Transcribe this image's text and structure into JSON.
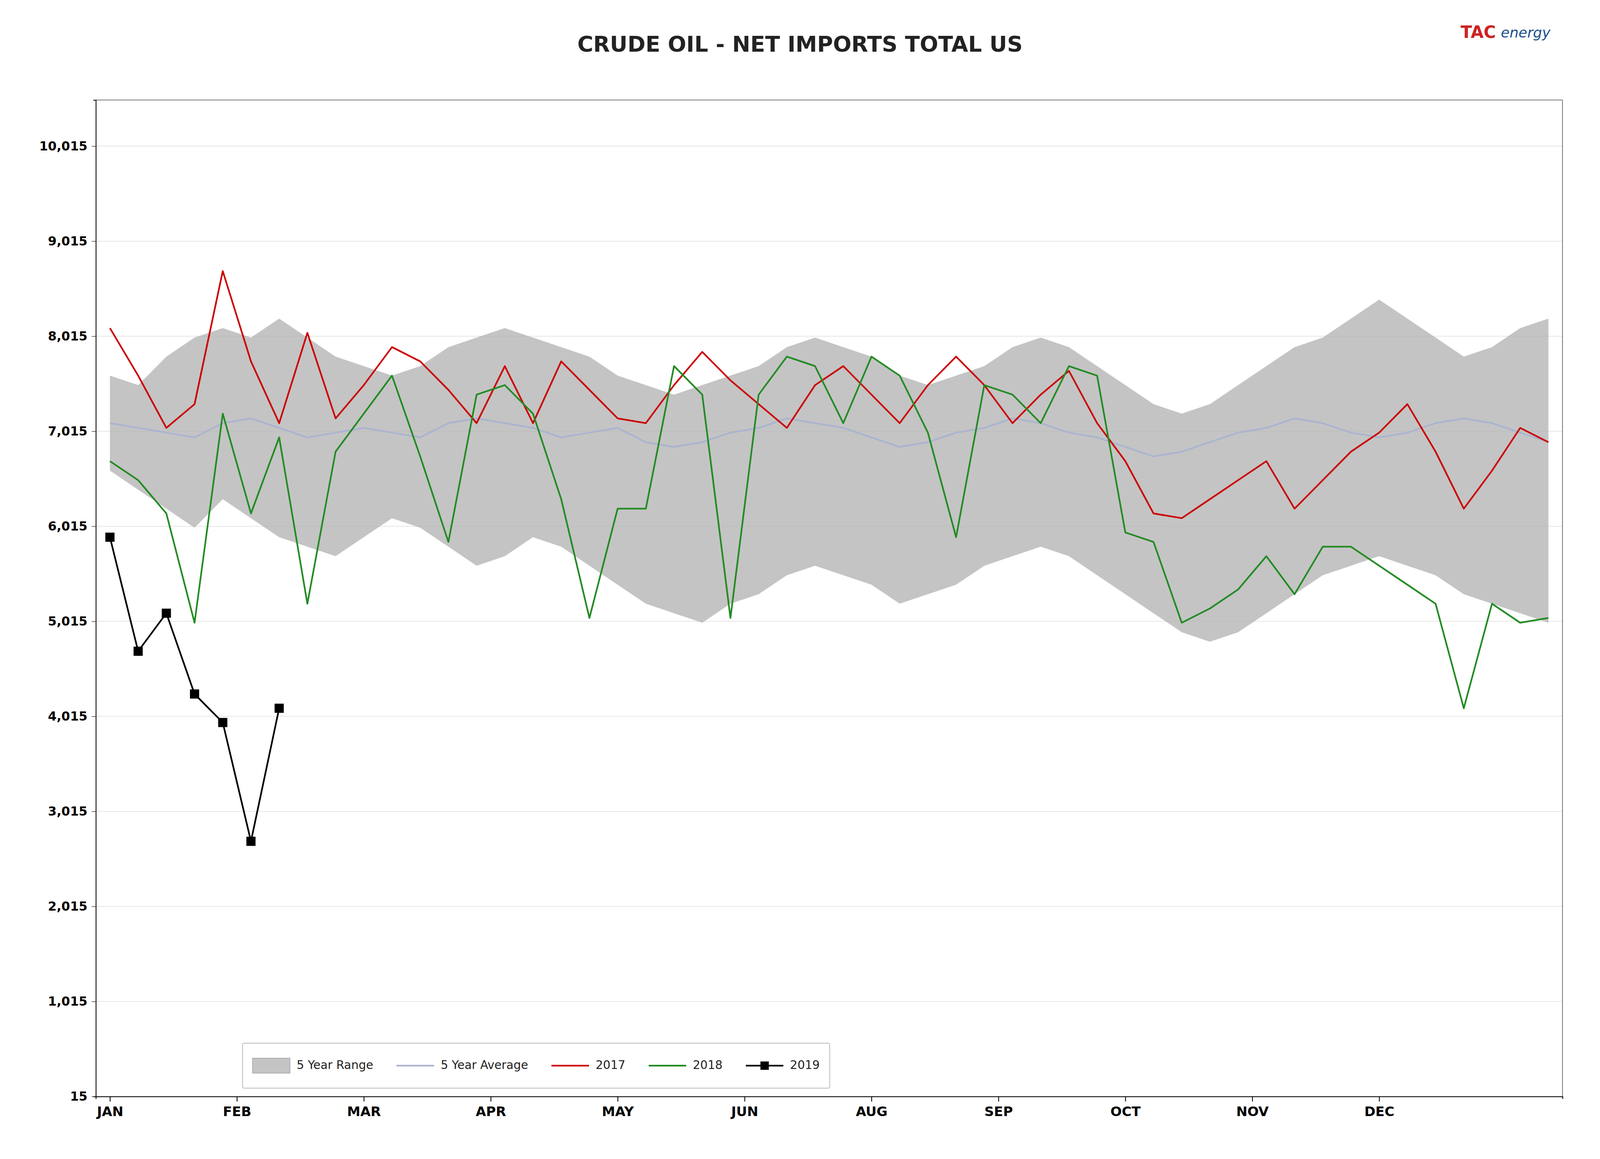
{
  "chart_data": {
    "type": "line",
    "title": "CRUDE OIL - NET IMPORTS TOTAL US",
    "annotations": [
      {
        "text": "TAC",
        "color": "#cc2222"
      },
      {
        "text": "energy",
        "color": "#1a4f8a"
      }
    ],
    "x": [
      0,
      1,
      2,
      3,
      4,
      5,
      6,
      7,
      8,
      9,
      10,
      11,
      12,
      13,
      14,
      15,
      16,
      17,
      18,
      19,
      20,
      21,
      22,
      23,
      24,
      25,
      26,
      27,
      28,
      29,
      30,
      31,
      32,
      33,
      34,
      35,
      36,
      37,
      38,
      39,
      40,
      41,
      42,
      43,
      44,
      45,
      46,
      47,
      48,
      49,
      50,
      51
    ],
    "xlim": [
      -0.5,
      51.5
    ],
    "xticks": [
      {
        "value": 0,
        "label": "JAN"
      },
      {
        "value": 4.5,
        "label": "FEB"
      },
      {
        "value": 9,
        "label": "MAR"
      },
      {
        "value": 13.5,
        "label": "APR"
      },
      {
        "value": 18,
        "label": "MAY"
      },
      {
        "value": 22.5,
        "label": "JUN"
      },
      {
        "value": 27,
        "label": "AUG"
      },
      {
        "value": 31.5,
        "label": "SEP"
      },
      {
        "value": 36,
        "label": "OCT"
      },
      {
        "value": 40.5,
        "label": "NOV"
      },
      {
        "value": 45,
        "label": "DEC"
      }
    ],
    "ylim": [
      15,
      10500
    ],
    "yticks": [
      15,
      {
        "value": 1015,
        "label": "1,015"
      },
      {
        "value": 2015,
        "label": "2,015"
      },
      {
        "value": 3015,
        "label": "3,015"
      },
      {
        "value": 4015,
        "label": "4,015"
      },
      {
        "value": 5015,
        "label": "5,015"
      },
      {
        "value": 6015,
        "label": "6,015"
      },
      {
        "value": 7015,
        "label": "7,015"
      },
      {
        "value": 8015,
        "label": "8,015"
      },
      {
        "value": 9015,
        "label": "9,015"
      },
      {
        "value": 10015,
        "label": "10,015"
      }
    ],
    "grid": true,
    "legend": "lower left",
    "series": [
      {
        "name": "5 Year Range",
        "type": "area",
        "color": "#b0b0b0",
        "low": [
          6600,
          6400,
          6200,
          6000,
          6300,
          6100,
          5900,
          5800,
          5700,
          5900,
          6100,
          6000,
          5800,
          5600,
          5700,
          5900,
          5800,
          5600,
          5400,
          5200,
          5100,
          5000,
          5200,
          5300,
          5500,
          5600,
          5500,
          5400,
          5200,
          5300,
          5400,
          5600,
          5700,
          5800,
          5700,
          5500,
          5300,
          5100,
          4900,
          4800,
          4900,
          5100,
          5300,
          5500,
          5600,
          5700,
          5600,
          5500,
          5300,
          5200,
          5100,
          5000
        ],
        "high": [
          7600,
          7500,
          7800,
          8000,
          8100,
          8000,
          8200,
          8000,
          7800,
          7700,
          7600,
          7700,
          7900,
          8000,
          8100,
          8000,
          7900,
          7800,
          7600,
          7500,
          7400,
          7500,
          7600,
          7700,
          7900,
          8000,
          7900,
          7800,
          7600,
          7500,
          7600,
          7700,
          7900,
          8000,
          7900,
          7700,
          7500,
          7300,
          7200,
          7300,
          7500,
          7700,
          7900,
          8000,
          8200,
          8400,
          8200,
          8000,
          7800,
          7900,
          8100,
          8200
        ]
      },
      {
        "name": "5 Year Average",
        "type": "line",
        "color": "#aab4d0",
        "values": [
          7100,
          7050,
          7000,
          6950,
          7100,
          7150,
          7050,
          6950,
          7000,
          7050,
          7000,
          6950,
          7100,
          7150,
          7100,
          7050,
          6950,
          7000,
          7050,
          6900,
          6850,
          6900,
          7000,
          7050,
          7150,
          7100,
          7050,
          6950,
          6850,
          6900,
          7000,
          7050,
          7150,
          7100,
          7000,
          6950,
          6850,
          6750,
          6800,
          6900,
          7000,
          7050,
          7150,
          7100,
          7000,
          6950,
          7000,
          7100,
          7150,
          7100,
          7000,
          6900
        ]
      },
      {
        "name": "2017",
        "type": "line",
        "color": "#cc0000",
        "values": [
          8100,
          7600,
          7050,
          7300,
          8700,
          7750,
          7100,
          8050,
          7150,
          7500,
          7900,
          7750,
          7450,
          7100,
          7700,
          7100,
          7750,
          7450,
          7150,
          7100,
          7500,
          7850,
          7550,
          7300,
          7050,
          7500,
          7700,
          7400,
          7100,
          7500,
          7800,
          7500,
          7100,
          7400,
          7650,
          7100,
          6700,
          6150,
          6100,
          6300,
          6500,
          6700,
          6200,
          6500,
          6800,
          7000,
          7300,
          6800,
          6200,
          6600,
          7050,
          6900
        ]
      },
      {
        "name": "2018",
        "type": "line",
        "color": "#228B22",
        "values": [
          6700,
          6500,
          6150,
          5000,
          7200,
          6150,
          6950,
          5200,
          6800,
          7200,
          7600,
          6750,
          5850,
          7400,
          7500,
          7200,
          6300,
          5050,
          6200,
          6200,
          7700,
          7400,
          5050,
          7400,
          7800,
          7700,
          7100,
          7800,
          7600,
          7000,
          5900,
          7500,
          7400,
          7100,
          7700,
          7600,
          5950,
          5850,
          5000,
          5150,
          5350,
          5700,
          5300,
          5800,
          5800,
          5600,
          5400,
          5200,
          4100,
          5200,
          5000,
          5050
        ]
      },
      {
        "name": "2019",
        "type": "line",
        "color": "#000000",
        "marker": "square",
        "values": [
          5900,
          4700,
          5100,
          4250,
          3950,
          2700,
          4100,
          null,
          null,
          null,
          null,
          null,
          null,
          null,
          null,
          null,
          null,
          null,
          null,
          null,
          null,
          null,
          null,
          null,
          null,
          null,
          null,
          null,
          null,
          null,
          null,
          null,
          null,
          null,
          null,
          null,
          null,
          null,
          null,
          null,
          null,
          null,
          null,
          null,
          null,
          null,
          null,
          null,
          null,
          null,
          null,
          null
        ]
      }
    ]
  }
}
